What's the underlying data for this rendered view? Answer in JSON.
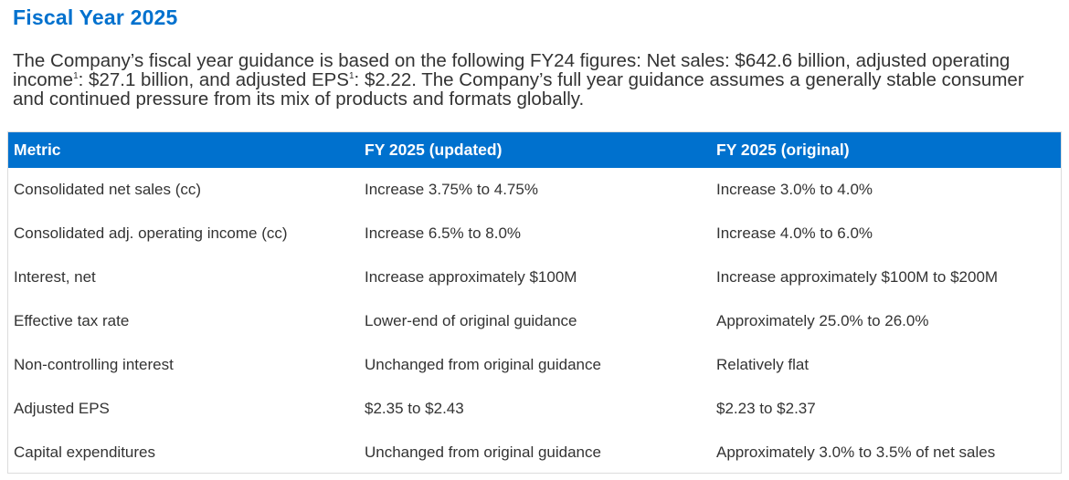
{
  "heading": {
    "title": "Fiscal Year 2025"
  },
  "intro": {
    "part1": "The Company’s fiscal year guidance is based on the following FY24 figures: Net sales: $642.6 billion, adjusted operating income",
    "sup1": "1",
    "part2": ": $27.1 billion, and adjusted EPS",
    "sup2": "1",
    "part3": ": $2.22. The Company’s full year guidance assumes a generally stable consumer and continued pressure from its mix of products and formats globally."
  },
  "table": {
    "columns": [
      "Metric",
      "FY 2025 (updated)",
      "FY 2025 (original)"
    ],
    "rows": [
      [
        "Consolidated net sales (cc)",
        "Increase 3.75% to 4.75%",
        "Increase 3.0% to 4.0%"
      ],
      [
        "Consolidated adj. operating income (cc)",
        "Increase 6.5% to 8.0%",
        "Increase 4.0% to 6.0%"
      ],
      [
        "Interest, net",
        "Increase approximately $100M",
        "Increase approximately $100M to $200M"
      ],
      [
        "Effective tax rate",
        "Lower-end of original guidance",
        "Approximately 25.0% to 26.0%"
      ],
      [
        "Non-controlling interest",
        "Unchanged from original guidance",
        "Relatively flat"
      ],
      [
        "Adjusted EPS",
        "$2.35 to $2.43",
        "$2.23 to $2.37"
      ],
      [
        "Capital expenditures",
        "Unchanged from original guidance",
        "Approximately 3.0% to 3.5% of net sales"
      ]
    ]
  },
  "colors": {
    "accent": "#0071ce",
    "text": "#333333",
    "header_text": "#ffffff"
  }
}
